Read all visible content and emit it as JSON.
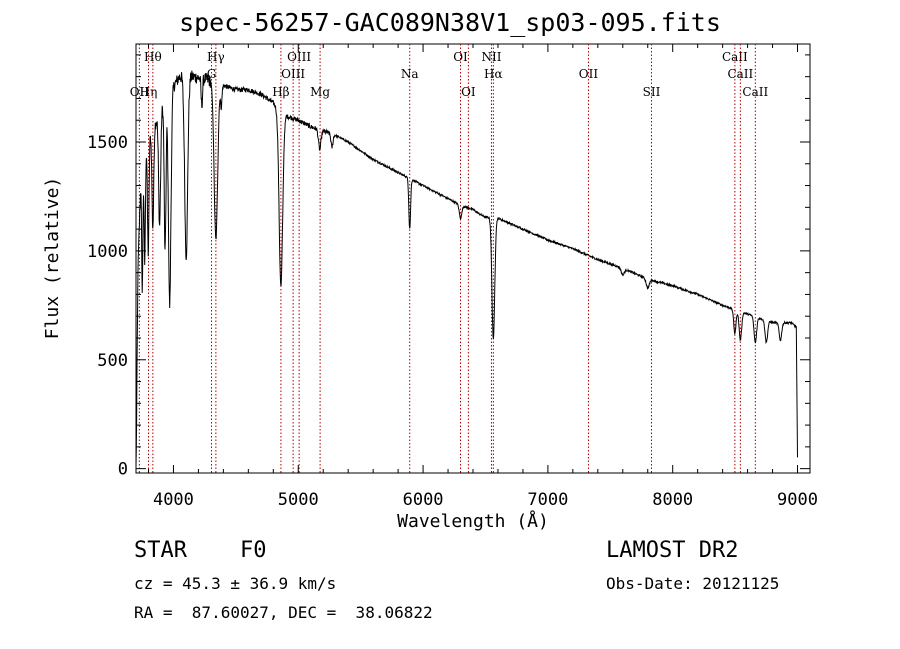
{
  "header": {
    "title": "spec-56257-GAC089N38V1_sp03-095.fits"
  },
  "footer": {
    "object_class": "STAR    F0",
    "redshift": "cz = 45.3 ± 36.9 km/s",
    "coords": "RA =  87.60027, DEC =  38.06822",
    "survey": "LAMOST DR2",
    "obs_date": "Obs-Date: 20121125"
  },
  "chart_data": {
    "type": "line",
    "title": "spec-56257-GAC089N38V1_sp03-095.fits",
    "xlabel": "Wavelength (Å)",
    "ylabel": "Flux (relative)",
    "xlim": [
      3700,
      9100
    ],
    "ylim": [
      -20,
      1950
    ],
    "xticks": [
      4000,
      5000,
      6000,
      7000,
      8000,
      9000
    ],
    "yticks": [
      0,
      500,
      1000,
      1500
    ],
    "continuum": [
      [
        3700,
        0
      ],
      [
        3705,
        200
      ],
      [
        3715,
        900
      ],
      [
        3740,
        1350
      ],
      [
        3790,
        1500
      ],
      [
        3850,
        1580
      ],
      [
        3900,
        1650
      ],
      [
        3960,
        1720
      ],
      [
        4050,
        1800
      ],
      [
        4150,
        1800
      ],
      [
        4250,
        1790
      ],
      [
        4400,
        1760
      ],
      [
        4500,
        1740
      ],
      [
        4600,
        1740
      ],
      [
        4700,
        1720
      ],
      [
        4800,
        1680
      ],
      [
        4850,
        1640
      ],
      [
        4900,
        1620
      ],
      [
        5000,
        1600
      ],
      [
        5100,
        1570
      ],
      [
        5200,
        1550
      ],
      [
        5300,
        1530
      ],
      [
        5400,
        1500
      ],
      [
        5500,
        1460
      ],
      [
        5600,
        1420
      ],
      [
        5700,
        1390
      ],
      [
        5800,
        1360
      ],
      [
        5900,
        1330
      ],
      [
        6000,
        1300
      ],
      [
        6100,
        1270
      ],
      [
        6200,
        1240
      ],
      [
        6300,
        1210
      ],
      [
        6400,
        1190
      ],
      [
        6450,
        1170
      ],
      [
        6500,
        1155
      ],
      [
        6600,
        1150
      ],
      [
        6800,
        1100
      ],
      [
        7000,
        1050
      ],
      [
        7200,
        1010
      ],
      [
        7400,
        960
      ],
      [
        7600,
        920
      ],
      [
        7800,
        870
      ],
      [
        8000,
        840
      ],
      [
        8200,
        800
      ],
      [
        8400,
        750
      ],
      [
        8600,
        710
      ],
      [
        8800,
        670
      ],
      [
        8950,
        670
      ],
      [
        8990,
        650
      ],
      [
        9000,
        50
      ]
    ],
    "absorption_features": [
      {
        "center": 3750,
        "depth": 550,
        "width": 5
      },
      {
        "center": 3770,
        "depth": 500,
        "width": 5
      },
      {
        "center": 3798,
        "depth": 520,
        "width": 6
      },
      {
        "center": 3835,
        "depth": 450,
        "width": 7
      },
      {
        "center": 3889,
        "depth": 520,
        "width": 8
      },
      {
        "center": 3933,
        "depth": 700,
        "width": 7
      },
      {
        "center": 3970,
        "depth": 980,
        "width": 10
      },
      {
        "center": 4102,
        "depth": 820,
        "width": 12
      },
      {
        "center": 4227,
        "depth": 120,
        "width": 6
      },
      {
        "center": 4340,
        "depth": 720,
        "width": 14
      },
      {
        "center": 4383,
        "depth": 100,
        "width": 6
      },
      {
        "center": 4861,
        "depth": 800,
        "width": 14
      },
      {
        "center": 5172,
        "depth": 90,
        "width": 10
      },
      {
        "center": 5270,
        "depth": 60,
        "width": 8
      },
      {
        "center": 5893,
        "depth": 230,
        "width": 7
      },
      {
        "center": 6300,
        "depth": 60,
        "width": 10
      },
      {
        "center": 6563,
        "depth": 560,
        "width": 11
      },
      {
        "center": 7600,
        "depth": 30,
        "width": 12
      },
      {
        "center": 7800,
        "depth": 40,
        "width": 12
      },
      {
        "center": 8498,
        "depth": 110,
        "width": 9
      },
      {
        "center": 8542,
        "depth": 130,
        "width": 10
      },
      {
        "center": 8662,
        "depth": 120,
        "width": 10
      },
      {
        "center": 8750,
        "depth": 100,
        "width": 10
      },
      {
        "center": 8863,
        "depth": 80,
        "width": 10
      }
    ],
    "line_markers": [
      {
        "wave": 3727,
        "label": "OII",
        "row": 3
      },
      {
        "wave": 3800,
        "label": "Hη",
        "row": 3
      },
      {
        "wave": 3835,
        "label": "Hθ",
        "row": 1
      },
      {
        "wave": 4305,
        "label": "G",
        "row": 2
      },
      {
        "wave": 4340,
        "label": "Hγ",
        "row": 1
      },
      {
        "wave": 4861,
        "label": "Hβ",
        "row": 3
      },
      {
        "wave": 4959,
        "label": "OIII",
        "row": 2
      },
      {
        "wave": 5007,
        "label": "OIII",
        "row": 1
      },
      {
        "wave": 5175,
        "label": "Mg",
        "row": 3
      },
      {
        "wave": 5893,
        "label": "Na",
        "row": 2
      },
      {
        "wave": 6300,
        "label": "OI",
        "row": 1
      },
      {
        "wave": 6363,
        "label": "OI",
        "row": 3
      },
      {
        "wave": 6548,
        "label": "NII",
        "row": 1
      },
      {
        "wave": 6563,
        "label": "Hα",
        "row": 2
      },
      {
        "wave": 7325,
        "label": "OII",
        "row": 2
      },
      {
        "wave": 7830,
        "label": "SII",
        "row": 3
      },
      {
        "wave": 8498,
        "label": "CaII",
        "row": 1
      },
      {
        "wave": 8542,
        "label": "CaII",
        "row": 2
      },
      {
        "wave": 8662,
        "label": "CaII",
        "row": 3
      }
    ],
    "colors": {
      "spectrum": "#000000",
      "markers": "#b00000",
      "axes": "#000000"
    }
  }
}
